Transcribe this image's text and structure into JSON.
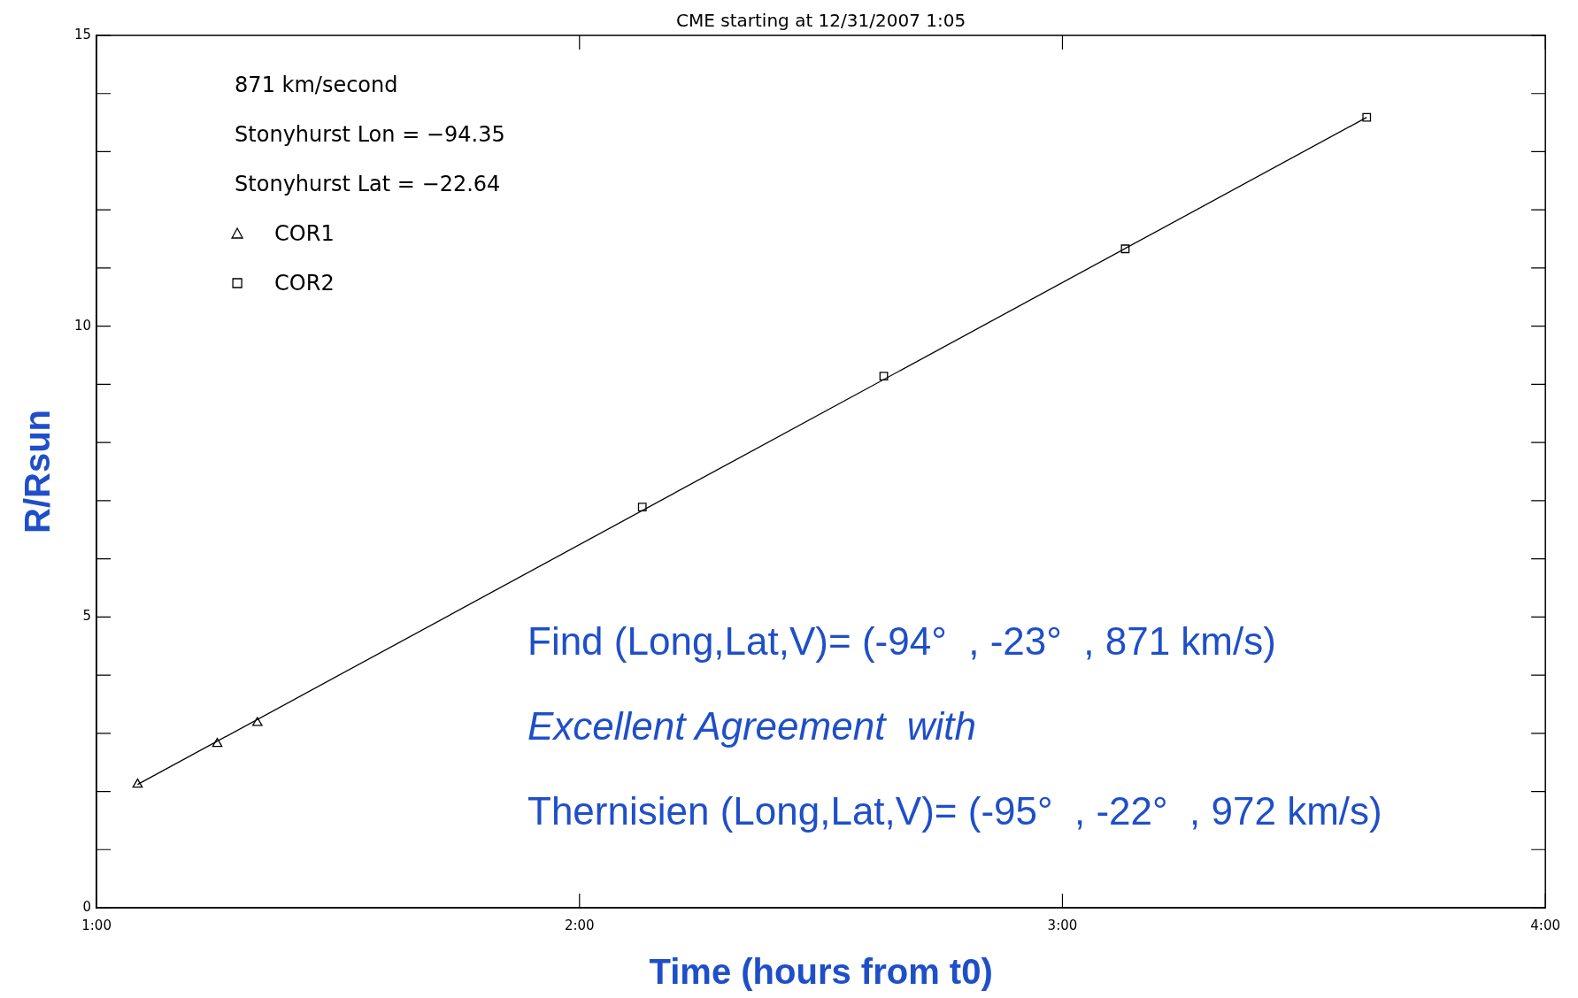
{
  "chart_data": {
    "type": "scatter",
    "title": "CME starting at 12/31/2007 1:05",
    "xlabel": "Time (hours from t0)",
    "ylabel": "R/Rsun",
    "xlim": [
      1,
      4
    ],
    "xticks": [
      {
        "value": 1,
        "label": "1:00"
      },
      {
        "value": 2,
        "label": "2:00"
      },
      {
        "value": 3,
        "label": "3:00"
      },
      {
        "value": 4,
        "label": "4:00"
      }
    ],
    "ylim": [
      0,
      15
    ],
    "yticks": [
      0,
      {
        "value": 1,
        "label": null
      },
      {
        "value": 2,
        "label": null
      },
      {
        "value": 3,
        "label": null
      },
      {
        "value": 4,
        "label": null
      },
      5,
      {
        "value": 6,
        "label": null
      },
      {
        "value": 7,
        "label": null
      },
      {
        "value": 8,
        "label": null
      },
      {
        "value": 9,
        "label": null
      },
      10,
      {
        "value": 11,
        "label": null
      },
      {
        "value": 12,
        "label": null
      },
      {
        "value": 13,
        "label": null
      },
      {
        "value": 14,
        "label": null
      },
      15
    ],
    "grid": false,
    "legend": "top left",
    "series": [
      {
        "name": "COR1",
        "marker": "triangle",
        "color": "#000000",
        "x": [
          1.085,
          1.25,
          1.333
        ],
        "values": [
          2.12,
          2.82,
          3.18
        ]
      },
      {
        "name": "COR2",
        "marker": "square",
        "color": "#000000",
        "x": [
          2.13,
          2.63,
          3.13,
          3.63
        ],
        "values": [
          6.89,
          9.14,
          11.33,
          13.59
        ]
      },
      {
        "type": "line",
        "marker": "none",
        "color": "#000000",
        "x": [
          1.085,
          3.63
        ],
        "values": [
          2.12,
          13.59
        ]
      }
    ],
    "annotations": [
      "871 km/second",
      "Stonyhurst Lon = −94.35",
      "Stonyhurst Lat = −22.64",
      "Find (Long,Lat,V)= (-94°  , -23°  , 871 km/s)",
      "Excellent Agreement  with",
      "Thernisien (Long,Lat,V)= (-95°  , -22°  , 972 km/s)"
    ]
  }
}
